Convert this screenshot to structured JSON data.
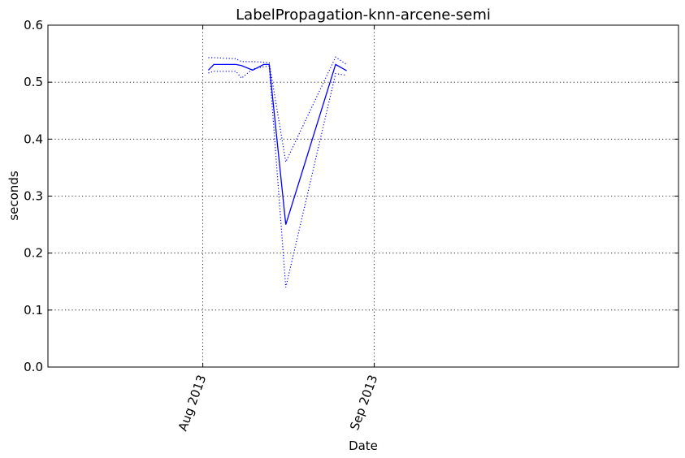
{
  "chart_data": {
    "type": "line",
    "title": "LabelPropagation-knn-arcene-semi",
    "xlabel": "Date",
    "ylabel": "seconds",
    "x_ticks": [
      "Aug 2013",
      "Sep 2013"
    ],
    "y_ticks": [
      "0.0",
      "0.1",
      "0.2",
      "0.3",
      "0.4",
      "0.5",
      "0.6"
    ],
    "xlim": [
      "2013-07-04",
      "2013-10-26"
    ],
    "ylim": [
      0.0,
      0.6
    ],
    "grid": true,
    "line_color": "#0000ff",
    "series": [
      {
        "style": "solid",
        "x": [
          "2013-08-02",
          "2013-08-03",
          "2013-08-07",
          "2013-08-08",
          "2013-08-10",
          "2013-08-12",
          "2013-08-13",
          "2013-08-16",
          "2013-08-25",
          "2013-08-27"
        ],
        "y": [
          0.521,
          0.531,
          0.531,
          0.529,
          0.521,
          0.531,
          0.531,
          0.25,
          0.531,
          0.52
        ]
      },
      {
        "style": "dotted",
        "x": [
          "2013-08-02",
          "2013-08-03",
          "2013-08-07",
          "2013-08-08",
          "2013-08-10",
          "2013-08-12",
          "2013-08-13",
          "2013-08-16",
          "2013-08-25",
          "2013-08-27"
        ],
        "y": [
          0.543,
          0.543,
          0.541,
          0.536,
          0.536,
          0.535,
          0.534,
          0.36,
          0.544,
          0.531
        ]
      },
      {
        "style": "dotted",
        "x": [
          "2013-08-02",
          "2013-08-03",
          "2013-08-07",
          "2013-08-08",
          "2013-08-10",
          "2013-08-12",
          "2013-08-13",
          "2013-08-16",
          "2013-08-25",
          "2013-08-27"
        ],
        "y": [
          0.516,
          0.519,
          0.519,
          0.507,
          0.523,
          0.527,
          0.528,
          0.14,
          0.515,
          0.512
        ]
      }
    ]
  }
}
